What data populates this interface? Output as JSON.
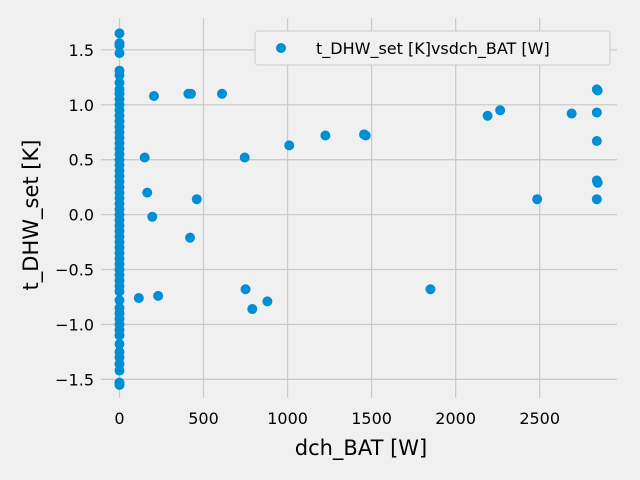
{
  "colors": {
    "background": "#f0f0f0",
    "grid": "#cbcbcb",
    "series": "#008fd5",
    "legend_border": "#cccccc"
  },
  "chart_data": {
    "type": "scatter",
    "title": "",
    "xlabel": "dch_BAT [W]",
    "ylabel": "t_DHW_set [K]",
    "xlim": [
      -110,
      2960
    ],
    "ylim": [
      -1.67,
      1.79
    ],
    "xticks": [
      0,
      500,
      1000,
      1500,
      2000,
      2500
    ],
    "xtick_labels": [
      "0",
      "500",
      "1000",
      "1500",
      "2000",
      "2500"
    ],
    "yticks": [
      -1.5,
      -1.0,
      -0.5,
      0.0,
      0.5,
      1.0,
      1.5
    ],
    "ytick_labels": [
      "−1.5",
      "−1.0",
      "−0.5",
      "0.0",
      "0.5",
      "1.0",
      "1.5"
    ],
    "grid": true,
    "legend_position": "top-right",
    "series": [
      {
        "name": "t_DHW_set [K]vsdch_BAT [W]",
        "points": [
          [
            0,
            1.65
          ],
          [
            0,
            1.56
          ],
          [
            0,
            1.54
          ],
          [
            0,
            1.47
          ],
          [
            0,
            1.31
          ],
          [
            0,
            1.27
          ],
          [
            0,
            1.2
          ],
          [
            0,
            1.14
          ],
          [
            0,
            1.1
          ],
          [
            0,
            1.05
          ],
          [
            0,
            1.0
          ],
          [
            0,
            0.95
          ],
          [
            0,
            0.9
          ],
          [
            0,
            0.85
          ],
          [
            0,
            0.8
          ],
          [
            0,
            0.75
          ],
          [
            0,
            0.7
          ],
          [
            0,
            0.65
          ],
          [
            0,
            0.6
          ],
          [
            0,
            0.55
          ],
          [
            0,
            0.5
          ],
          [
            0,
            0.45
          ],
          [
            0,
            0.4
          ],
          [
            0,
            0.35
          ],
          [
            0,
            0.3
          ],
          [
            0,
            0.25
          ],
          [
            0,
            0.2
          ],
          [
            0,
            0.15
          ],
          [
            0,
            0.1
          ],
          [
            0,
            0.05
          ],
          [
            0,
            0.0
          ],
          [
            0,
            -0.05
          ],
          [
            0,
            -0.1
          ],
          [
            0,
            -0.15
          ],
          [
            0,
            -0.2
          ],
          [
            0,
            -0.25
          ],
          [
            0,
            -0.3
          ],
          [
            0,
            -0.35
          ],
          [
            0,
            -0.4
          ],
          [
            0,
            -0.45
          ],
          [
            0,
            -0.5
          ],
          [
            0,
            -0.55
          ],
          [
            0,
            -0.6
          ],
          [
            0,
            -0.65
          ],
          [
            0,
            -0.7
          ],
          [
            0,
            -0.78
          ],
          [
            0,
            -0.85
          ],
          [
            0,
            -0.9
          ],
          [
            0,
            -0.95
          ],
          [
            0,
            -1.0
          ],
          [
            0,
            -1.05
          ],
          [
            0,
            -1.1
          ],
          [
            0,
            -1.18
          ],
          [
            0,
            -1.25
          ],
          [
            0,
            -1.3
          ],
          [
            0,
            -1.36
          ],
          [
            0,
            -1.42
          ],
          [
            0,
            -1.53
          ],
          [
            0,
            -1.55
          ],
          [
            115,
            -0.76
          ],
          [
            150,
            0.52
          ],
          [
            165,
            0.2
          ],
          [
            195,
            -0.02
          ],
          [
            205,
            1.08
          ],
          [
            230,
            -0.74
          ],
          [
            410,
            1.1
          ],
          [
            425,
            1.1
          ],
          [
            420,
            -0.21
          ],
          [
            460,
            0.14
          ],
          [
            610,
            1.1
          ],
          [
            745,
            0.52
          ],
          [
            750,
            -0.68
          ],
          [
            790,
            -0.86
          ],
          [
            880,
            -0.79
          ],
          [
            1010,
            0.63
          ],
          [
            1225,
            0.72
          ],
          [
            1455,
            0.73
          ],
          [
            1465,
            0.72
          ],
          [
            1850,
            -0.68
          ],
          [
            2190,
            0.9
          ],
          [
            2265,
            0.95
          ],
          [
            2485,
            0.14
          ],
          [
            2690,
            0.92
          ],
          [
            2840,
            1.14
          ],
          [
            2845,
            1.13
          ],
          [
            2840,
            0.93
          ],
          [
            2840,
            0.67
          ],
          [
            2840,
            0.31
          ],
          [
            2845,
            0.29
          ],
          [
            2840,
            0.14
          ]
        ]
      }
    ]
  }
}
